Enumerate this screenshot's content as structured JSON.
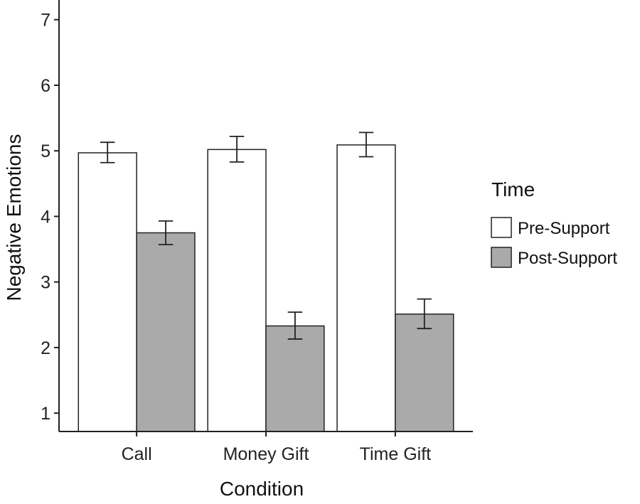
{
  "chart_data": {
    "type": "bar",
    "title": "",
    "xlabel": "Condition",
    "ylabel": "Negative Emotions",
    "categories": [
      "Call",
      "Money Gift",
      "Time Gift"
    ],
    "series": [
      {
        "name": "Pre-Support",
        "color": "#ffffff",
        "values": [
          4.97,
          5.02,
          5.09
        ],
        "error_low": [
          4.82,
          4.83,
          4.91
        ],
        "error_high": [
          5.13,
          5.22,
          5.28
        ]
      },
      {
        "name": "Post-Support",
        "color": "#aaaaaa",
        "values": [
          3.75,
          2.33,
          2.51
        ],
        "error_low": [
          3.57,
          2.13,
          2.29
        ],
        "error_high": [
          3.93,
          2.54,
          2.74
        ]
      }
    ],
    "yticks": [
      "1",
      "2",
      "3",
      "4",
      "5",
      "6",
      "7"
    ],
    "ylim": [
      0.72,
      7.3
    ],
    "grid": false,
    "legend": {
      "title": "Time",
      "position": "right"
    },
    "bar_edge_color": "#222222"
  }
}
